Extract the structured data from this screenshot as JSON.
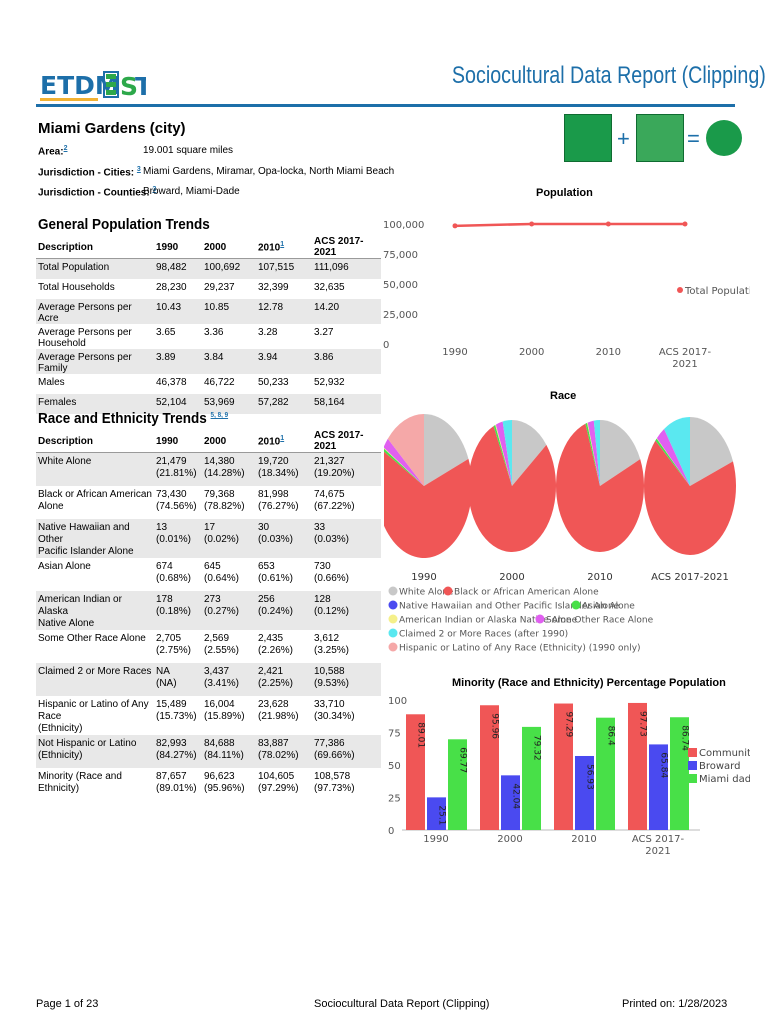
{
  "header": {
    "logo_text": "ETDM EST",
    "title": "Sociocultural Data Report (Clipping)"
  },
  "place": {
    "name": "Miami Gardens (city)",
    "area_label": "Area:",
    "area_ref": "2",
    "area_value": "19.001 square miles",
    "cities_label": "Jurisdiction - Cities:",
    "cities_ref": "3",
    "cities_value": "Miami Gardens, Miramar, Opa-locka, North Miami Beach",
    "counties_label": "Jurisdiction - Counties:",
    "counties_ref": "3",
    "counties_value": "Broward, Miami-Dade"
  },
  "general": {
    "title": "General Population Trends",
    "headers": [
      "Description",
      "1990",
      "2000",
      "2010",
      "ACS 2017-2021"
    ],
    "header_ref": "1",
    "rows": [
      [
        "Total Population",
        "98,482",
        "100,692",
        "107,515",
        "111,096"
      ],
      [
        "Total Households",
        "28,230",
        "29,237",
        "32,399",
        "32,635"
      ],
      [
        "Average Persons per Acre",
        "10.43",
        "10.85",
        "12.78",
        "14.20"
      ],
      [
        "Average Persons per Household",
        "3.65",
        "3.36",
        "3.28",
        "3.27"
      ],
      [
        "Average Persons per Family",
        "3.89",
        "3.84",
        "3.94",
        "3.86"
      ],
      [
        "Males",
        "46,378",
        "46,722",
        "50,233",
        "52,932"
      ],
      [
        "Females",
        "52,104",
        "53,969",
        "57,282",
        "58,164"
      ]
    ]
  },
  "race_table": {
    "title": "Race and Ethnicity Trends",
    "title_refs": "5, 8, 9",
    "headers": [
      "Description",
      "1990",
      "2000",
      "2010",
      "ACS 2017-2021"
    ],
    "header_ref": "1",
    "rows": [
      [
        [
          "White Alone"
        ],
        [
          "21,479",
          "(21.81%)"
        ],
        [
          "14,380",
          "(14.28%)"
        ],
        [
          "19,720",
          "(18.34%)"
        ],
        [
          "21,327",
          "(19.20%)"
        ]
      ],
      [
        [
          "Black or African American Alone"
        ],
        [
          "73,430",
          "(74.56%)"
        ],
        [
          "79,368",
          "(78.82%)"
        ],
        [
          "81,998",
          "(76.27%)"
        ],
        [
          "74,675",
          "(67.22%)"
        ]
      ],
      [
        [
          "Native Hawaiian and Other",
          "Pacific Islander Alone"
        ],
        [
          "13",
          "(0.01%)"
        ],
        [
          "17",
          "(0.02%)"
        ],
        [
          "30",
          "(0.03%)"
        ],
        [
          "33",
          "(0.03%)"
        ]
      ],
      [
        [
          "Asian Alone"
        ],
        [
          "674",
          "(0.68%)"
        ],
        [
          "645",
          "(0.64%)"
        ],
        [
          "653",
          "(0.61%)"
        ],
        [
          "730",
          "(0.66%)"
        ]
      ],
      [
        [
          "American Indian or Alaska",
          "Native Alone"
        ],
        [
          "178",
          "(0.18%)"
        ],
        [
          "273",
          "(0.27%)"
        ],
        [
          "256",
          "(0.24%)"
        ],
        [
          "128",
          "(0.12%)"
        ]
      ],
      [
        [
          "Some Other Race Alone"
        ],
        [
          "2,705",
          "(2.75%)"
        ],
        [
          "2,569",
          "(2.55%)"
        ],
        [
          "2,435",
          "(2.26%)"
        ],
        [
          "3,612",
          "(3.25%)"
        ]
      ],
      [
        [
          "Claimed 2 or More Races"
        ],
        [
          "NA",
          "(NA)"
        ],
        [
          "3,437",
          "(3.41%)"
        ],
        [
          "2,421",
          "(2.25%)"
        ],
        [
          "10,588",
          "(9.53%)"
        ]
      ],
      [
        [
          "Hispanic or Latino of Any Race",
          "(Ethnicity)"
        ],
        [
          "15,489",
          "(15.73%)"
        ],
        [
          "16,004",
          "(15.89%)"
        ],
        [
          "23,628",
          "(21.98%)"
        ],
        [
          "33,710",
          "(30.34%)"
        ]
      ],
      [
        [
          "Not Hispanic or Latino (Ethnicity)"
        ],
        [
          "82,993",
          "(84.27%)"
        ],
        [
          "84,688",
          "(84.11%)"
        ],
        [
          "83,887",
          "(78.02%)"
        ],
        [
          "77,386",
          "(69.66%)"
        ]
      ],
      [
        [
          "Minority (Race and Ethnicity)"
        ],
        [
          "87,657",
          "(89.01%)"
        ],
        [
          "96,623",
          "(95.96%)"
        ],
        [
          "104,605",
          "(97.29%)"
        ],
        [
          "108,578",
          "(97.73%)"
        ]
      ]
    ]
  },
  "chart_data": [
    {
      "type": "line",
      "title": "Population",
      "categories": [
        "1990",
        "2000",
        "2010",
        "ACS 2017-2021"
      ],
      "series": [
        {
          "name": "Total Population",
          "values": [
            98482,
            100692,
            107515,
            111096
          ],
          "color": "#f05656"
        }
      ],
      "ylim": [
        0,
        100000
      ],
      "yticks": [
        "0",
        "25,000",
        "50,000",
        "75,000",
        "100,000"
      ],
      "legend": "right"
    },
    {
      "type": "pie",
      "title": "Race",
      "categories": [
        "1990",
        "2000",
        "2010",
        "ACS 2017-2021"
      ],
      "slice_labels": [
        "White Alone",
        "Black or African American Alone",
        "Native Hawaiian and Other Pacific Islander Alone",
        "Asian Alone",
        "American Indian or Alaska Native Alone",
        "Some Other Race Alone",
        "Claimed 2 or More Races (after 1990)",
        "Hispanic or Latino of Any Race (Ethnicity) (1990 only)"
      ],
      "slice_colors": [
        "#c8c8c8",
        "#f05656",
        "#4a4af0",
        "#48e048",
        "#f5f08a",
        "#e060f0",
        "#5ae8f0",
        "#f5a8a8"
      ],
      "pies": [
        [
          21.81,
          74.56,
          0.01,
          0.68,
          0.18,
          2.75,
          0,
          15.73
        ],
        [
          14.28,
          78.82,
          0.02,
          0.64,
          0.27,
          2.55,
          3.41,
          0
        ],
        [
          18.34,
          76.27,
          0.03,
          0.61,
          0.24,
          2.26,
          2.25,
          0
        ],
        [
          19.2,
          67.22,
          0.03,
          0.66,
          0.12,
          3.25,
          9.53,
          0
        ]
      ],
      "legend": "bottom"
    },
    {
      "type": "bar",
      "title": "Minority (Race and Ethnicity) Percentage Population",
      "categories": [
        "1990",
        "2000",
        "2010",
        "ACS 2017-2021"
      ],
      "series": [
        {
          "name": "Community",
          "values": [
            89.01,
            95.96,
            97.29,
            97.73
          ],
          "labels": [
            "89.01",
            "95.96",
            "97.29",
            "97.73"
          ],
          "color": "#f05656"
        },
        {
          "name": "Broward",
          "values": [
            25.1,
            42.04,
            56.93,
            65.84
          ],
          "labels": [
            "25.1",
            "42.04",
            "56.93",
            "65.84"
          ],
          "color": "#4a4af0"
        },
        {
          "name": "Miami dade",
          "values": [
            69.77,
            79.32,
            86.4,
            86.74
          ],
          "labels": [
            "69.77",
            "79.32",
            "86.4",
            "86.74"
          ],
          "color": "#48e048"
        }
      ],
      "ylim": [
        0,
        100
      ],
      "yticks": [
        "0",
        "25",
        "50",
        "75",
        "100"
      ],
      "legend": "right"
    }
  ],
  "footer": {
    "page": "Page 1 of 23",
    "center": "Sociocultural Data Report (Clipping)",
    "printed": "Printed on: 1/28/2023"
  }
}
